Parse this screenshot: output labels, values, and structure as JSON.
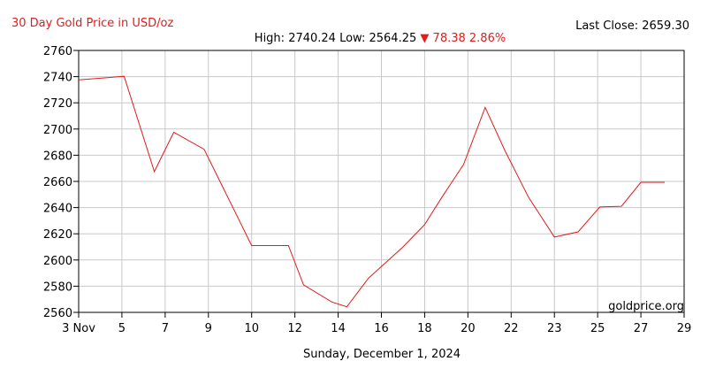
{
  "chart_data": {
    "type": "line",
    "title": "30 Day Gold Price in USD/oz",
    "last_close_label": "Last Close: 2659.30",
    "summary": {
      "high_label": "High: 2740.24",
      "low_label": "Low: 2564.25",
      "arrow": "▼",
      "change_label": "78.38 2.86%"
    },
    "xlabel": "Sunday, December 1, 2024",
    "ylabel": "",
    "watermark": "goldprice.org",
    "ylim": [
      2560,
      2760
    ],
    "yticks": [
      2560,
      2580,
      2600,
      2620,
      2640,
      2660,
      2680,
      2700,
      2720,
      2740,
      2760
    ],
    "xticks": [
      "3 Nov",
      "5",
      "7",
      "9",
      "10",
      "12",
      "14",
      "16",
      "18",
      "20",
      "22",
      "23",
      "25",
      "27",
      "29"
    ],
    "grid": true,
    "colors": {
      "line": "#e31b1b",
      "grid": "#c8c8c8",
      "accent": "#e31b1b"
    },
    "series": [
      {
        "x": [
          0,
          1.05,
          1.75,
          2.2,
          2.9,
          4.0,
          4.85,
          5.2,
          5.85,
          6.2,
          6.7,
          7.5,
          8.0,
          8.4,
          8.9,
          9.4,
          9.85,
          10.4,
          11.0,
          11.55,
          12.05,
          12.55,
          13.0,
          13.55
        ],
        "values": [
          2737.5,
          2740.24,
          2667.5,
          2697.5,
          2684.5,
          2611,
          2611,
          2581,
          2568,
          2564.25,
          2586,
          2610,
          2627,
          2648,
          2673,
          2716.5,
          2684,
          2648,
          2617.5,
          2621.5,
          2640.5,
          2641,
          2659.3,
          2659.3
        ]
      }
    ]
  }
}
